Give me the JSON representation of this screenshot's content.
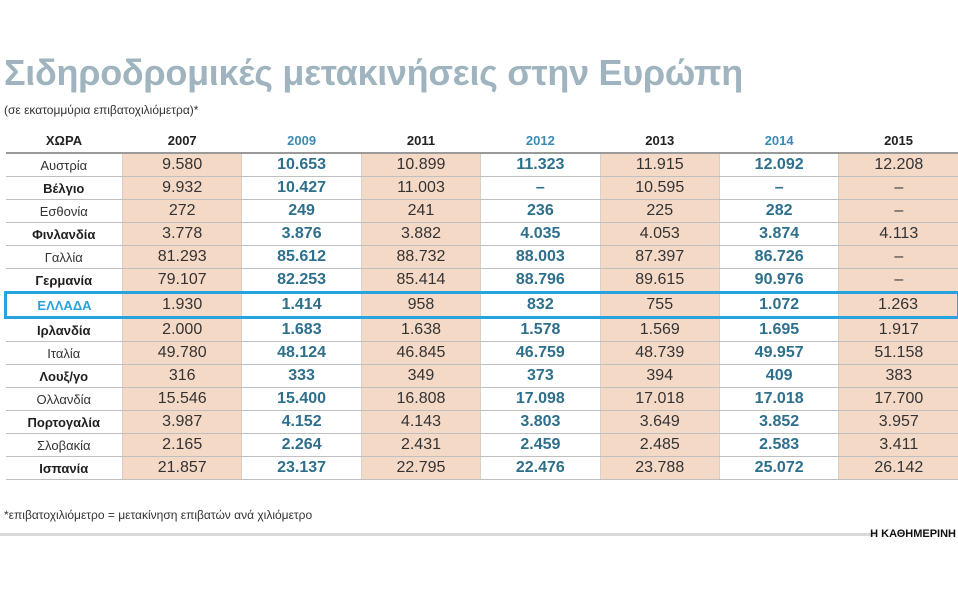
{
  "title": "Σιδηροδρομικές μετακινήσεις στην Ευρώπη",
  "subtitle": "(σε εκατομμύρια επιβατοχιλιόμετρα)*",
  "footnote": "*επιβατοχιλιόμετρο = μετακίνηση επιβατών ανά χιλιόμετρο",
  "brand": "Η ΚΑΘΗΜΕΡΙΝΗ",
  "colors": {
    "title": "#9fb4bf",
    "shaded_column": "#f5d9c7",
    "highlight_year": "#3b8bb5",
    "highlight_value": "#2e6f8c",
    "greece_border": "#27a3dd"
  },
  "chart_data": {
    "type": "table",
    "columns": [
      "ΧΩΡΑ",
      "2007",
      "2009",
      "2011",
      "2012",
      "2013",
      "2014",
      "2015"
    ],
    "highlighted_years": [
      "2009",
      "2012",
      "2014"
    ],
    "highlighted_row": "ΕΛΛΑΔΑ",
    "rows": [
      {
        "country": "Αυστρία",
        "bold": false,
        "values": [
          "9.580",
          "10.653",
          "10.899",
          "11.323",
          "11.915",
          "12.092",
          "12.208"
        ]
      },
      {
        "country": "Βέλγιο",
        "bold": true,
        "values": [
          "9.932",
          "10.427",
          "11.003",
          "–",
          "10.595",
          "–",
          "–"
        ]
      },
      {
        "country": "Εσθονία",
        "bold": false,
        "values": [
          "272",
          "249",
          "241",
          "236",
          "225",
          "282",
          "–"
        ]
      },
      {
        "country": "Φινλανδία",
        "bold": true,
        "values": [
          "3.778",
          "3.876",
          "3.882",
          "4.035",
          "4.053",
          "3.874",
          "4.113"
        ]
      },
      {
        "country": "Γαλλία",
        "bold": false,
        "values": [
          "81.293",
          "85.612",
          "88.732",
          "88.003",
          "87.397",
          "86.726",
          "–"
        ]
      },
      {
        "country": "Γερμανία",
        "bold": true,
        "values": [
          "79.107",
          "82.253",
          "85.414",
          "88.796",
          "89.615",
          "90.976",
          "–"
        ]
      },
      {
        "country": "ΕΛΛΑΔΑ",
        "bold": true,
        "values": [
          "1.930",
          "1.414",
          "958",
          "832",
          "755",
          "1.072",
          "1.263"
        ]
      },
      {
        "country": "Ιρλανδία",
        "bold": true,
        "values": [
          "2.000",
          "1.683",
          "1.638",
          "1.578",
          "1.569",
          "1.695",
          "1.917"
        ]
      },
      {
        "country": "Ιταλία",
        "bold": false,
        "values": [
          "49.780",
          "48.124",
          "46.845",
          "46.759",
          "48.739",
          "49.957",
          "51.158"
        ]
      },
      {
        "country": "Λουξ/γο",
        "bold": true,
        "values": [
          "316",
          "333",
          "349",
          "373",
          "394",
          "409",
          "383"
        ]
      },
      {
        "country": "Ολλανδία",
        "bold": false,
        "values": [
          "15.546",
          "15.400",
          "16.808",
          "17.098",
          "17.018",
          "17.018",
          "17.700"
        ]
      },
      {
        "country": "Πορτογαλία",
        "bold": true,
        "values": [
          "3.987",
          "4.152",
          "4.143",
          "3.803",
          "3.649",
          "3.852",
          "3.957"
        ]
      },
      {
        "country": "Σλοβακία",
        "bold": false,
        "values": [
          "2.165",
          "2.264",
          "2.431",
          "2.459",
          "2.485",
          "2.583",
          "3.411"
        ]
      },
      {
        "country": "Ισπανία",
        "bold": true,
        "values": [
          "21.857",
          "23.137",
          "22.795",
          "22.476",
          "23.788",
          "25.072",
          "26.142"
        ]
      }
    ]
  }
}
